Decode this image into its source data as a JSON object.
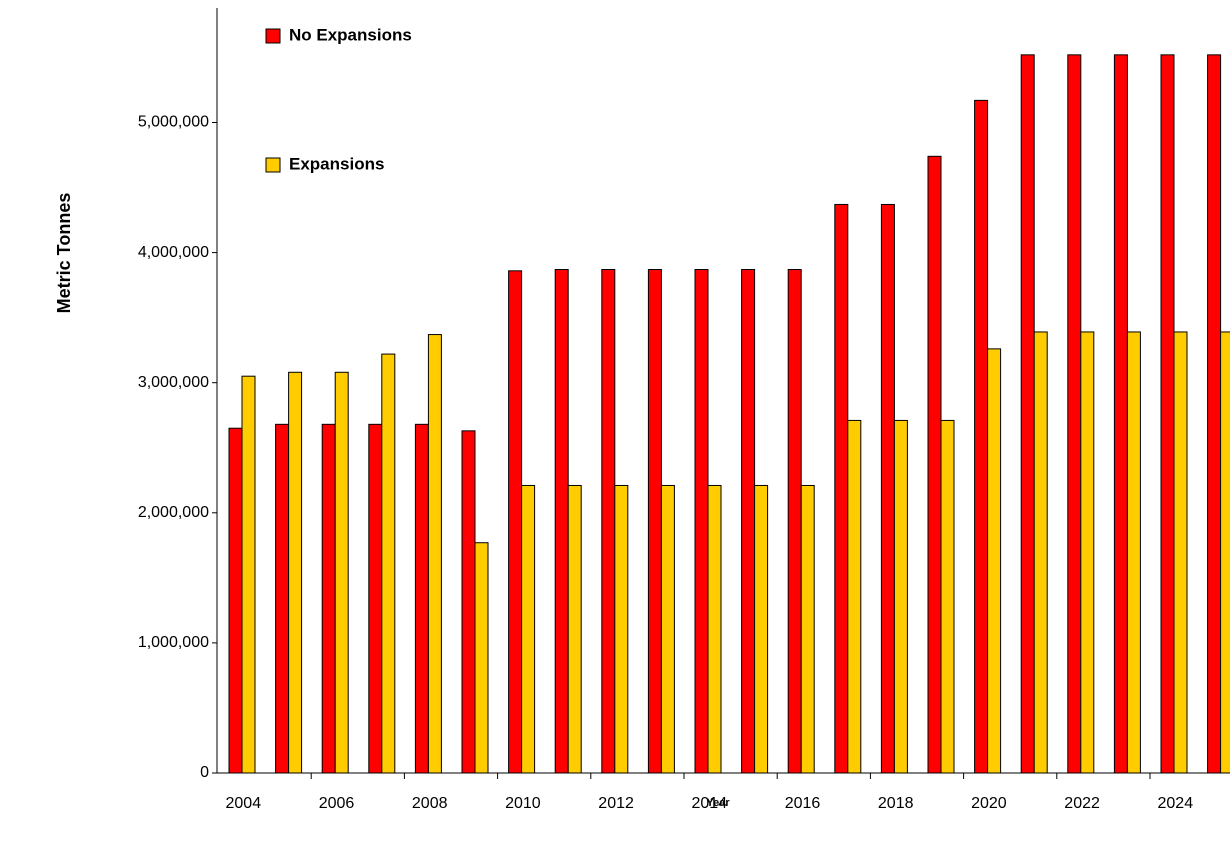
{
  "chart_data": {
    "type": "bar",
    "x_label": "Year",
    "y_label": "Metric Tonnes",
    "categories": [
      "2004",
      null,
      "2006",
      null,
      "2008",
      null,
      "2010",
      null,
      "2012",
      null,
      "2014",
      null,
      "2016",
      null,
      "2018",
      null,
      "2020",
      null,
      "2022",
      null,
      "2024",
      null
    ],
    "series": [
      {
        "name": "No Expansions",
        "color": "#ff0000",
        "values": [
          2650000,
          2680000,
          2680000,
          2680000,
          2680000,
          2630000,
          3860000,
          3870000,
          3870000,
          3870000,
          3870000,
          3870000,
          3870000,
          4370000,
          4370000,
          4740000,
          5170000,
          5520000,
          5520000,
          5520000,
          5520000,
          5520000
        ]
      },
      {
        "name": "Expansions",
        "color": "#ffcc00",
        "values": [
          3050000,
          3080000,
          3080000,
          3220000,
          3370000,
          1770000,
          2210000,
          2210000,
          2210000,
          2210000,
          2210000,
          2210000,
          2210000,
          2710000,
          2710000,
          2710000,
          3260000,
          3390000,
          3390000,
          3390000,
          3390000,
          3390000
        ]
      }
    ],
    "ylim": [
      0,
      5880000
    ],
    "yticks": [
      0,
      {
        "value": 1000000,
        "label": "1,000,000"
      },
      {
        "value": 2000000,
        "label": "2,000,000"
      },
      {
        "value": 3000000,
        "label": "3,000,000"
      },
      {
        "value": 4000000,
        "label": "4,000,000"
      },
      {
        "value": 5000000,
        "label": "5,000,000"
      }
    ],
    "grid": false
  }
}
